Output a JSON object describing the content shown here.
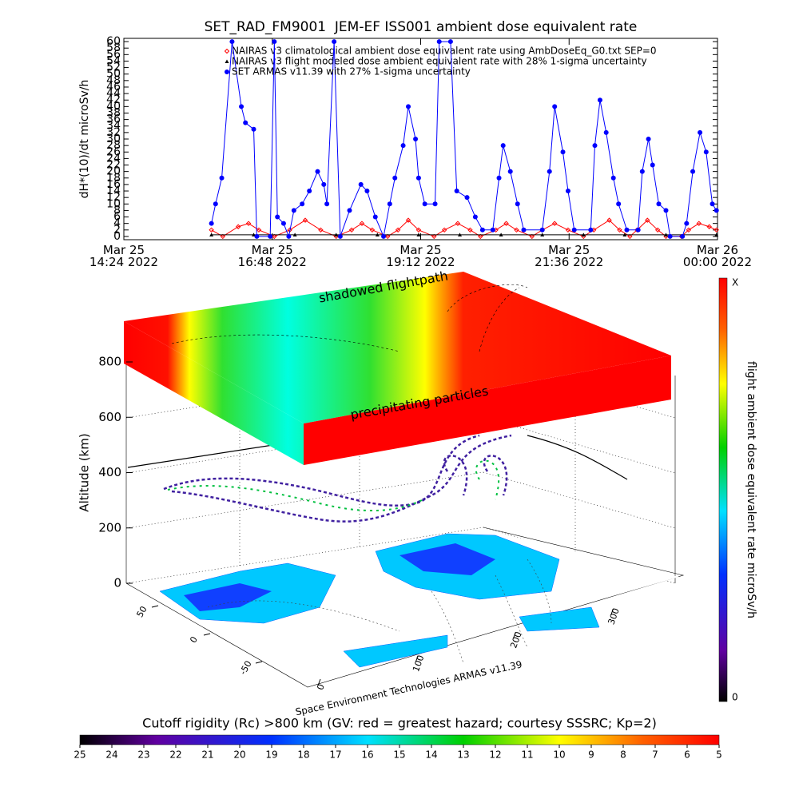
{
  "chart_data": [
    {
      "type": "line",
      "title": "SET_RAD_FM9001  JEM-EF ISS001 ambient dose equivalent rate",
      "ylabel": "dH*(10)/dt microSv/h",
      "xlim": [
        "2022-03-25T14:24",
        "2022-03-26T00:00"
      ],
      "xticks": [
        {
          "value": "2022-03-25T14:24",
          "label": "Mar 25\n14:24 2022"
        },
        {
          "value": "2022-03-25T16:48",
          "label": "Mar 25\n16:48 2022"
        },
        {
          "value": "2022-03-25T19:12",
          "label": "Mar 25\n19:12 2022"
        },
        {
          "value": "2022-03-25T21:36",
          "label": "Mar 25\n21:36 2022"
        },
        {
          "value": "2022-03-26T00:00",
          "label": "Mar 26\n00:00 2022"
        }
      ],
      "ylim": [
        -1,
        61
      ],
      "yticks": [
        0,
        2,
        4,
        6,
        8,
        10,
        12,
        14,
        16,
        18,
        20,
        22,
        24,
        26,
        28,
        30,
        32,
        34,
        36,
        38,
        40,
        42,
        44,
        46,
        48,
        50,
        52,
        54,
        56,
        58,
        60
      ],
      "series": [
        {
          "name": "NAIRAS v3 climatological ambient dose equivalent rate using AmbDoseEq_G0.txt SEP=0",
          "color": "#ff0000",
          "marker": "diamond",
          "x": [
            "2022-03-25T15:49",
            "2022-03-25T16:00",
            "2022-03-25T16:15",
            "2022-03-25T16:25",
            "2022-03-25T16:35",
            "2022-03-25T16:50",
            "2022-03-25T17:05",
            "2022-03-25T17:20",
            "2022-03-25T17:35",
            "2022-03-25T17:50",
            "2022-03-25T18:05",
            "2022-03-25T18:15",
            "2022-03-25T18:25",
            "2022-03-25T18:40",
            "2022-03-25T18:50",
            "2022-03-25T19:00",
            "2022-03-25T19:10",
            "2022-03-25T19:25",
            "2022-03-25T19:35",
            "2022-03-25T19:48",
            "2022-03-25T20:00",
            "2022-03-25T20:10",
            "2022-03-25T20:25",
            "2022-03-25T20:35",
            "2022-03-25T20:45",
            "2022-03-25T21:00",
            "2022-03-25T21:10",
            "2022-03-25T21:22",
            "2022-03-25T21:35",
            "2022-03-25T21:50",
            "2022-03-25T22:00",
            "2022-03-25T22:15",
            "2022-03-25T22:25",
            "2022-03-25T22:35",
            "2022-03-25T22:42",
            "2022-03-25T22:52",
            "2022-03-25T23:02",
            "2022-03-25T23:10",
            "2022-03-25T23:25",
            "2022-03-25T23:32",
            "2022-03-25T23:42",
            "2022-03-25T23:52",
            "2022-03-25T23:59"
          ],
          "values": [
            2,
            0,
            3,
            4,
            2,
            0,
            2,
            5,
            2,
            0,
            2,
            4,
            2,
            0,
            2,
            5,
            2,
            0,
            2,
            4,
            2,
            0,
            2,
            4,
            2,
            0,
            2,
            4,
            2,
            0,
            2,
            5,
            2,
            0,
            2,
            5,
            2,
            0,
            0,
            2,
            4,
            3,
            2
          ]
        },
        {
          "name": "NAIRAS v3 flight modeled dose ambient equivalent rate with 28% 1-sigma uncertainty",
          "color": "#000000",
          "marker": "triangle",
          "x": [
            "2022-03-25T15:49",
            "2022-03-25T16:30",
            "2022-03-25T17:10",
            "2022-03-25T17:50",
            "2022-03-25T18:30",
            "2022-03-25T19:10",
            "2022-03-25T19:50",
            "2022-03-25T20:30",
            "2022-03-25T21:10",
            "2022-03-25T21:50",
            "2022-03-25T22:30",
            "2022-03-25T23:10",
            "2022-03-25T23:59"
          ],
          "values": [
            0.5,
            0.5,
            0.5,
            0.5,
            0.5,
            0.5,
            0.5,
            0.5,
            0.5,
            0.5,
            0.5,
            0.5,
            0.5
          ]
        },
        {
          "name": "SET ARMAS v11.39 with 27% 1-sigma uncertainty",
          "color": "#0000ff",
          "marker": "circle",
          "x": [
            "2022-03-25T15:49",
            "2022-03-25T15:53",
            "2022-03-25T15:59",
            "2022-03-25T16:09",
            "2022-03-25T16:18",
            "2022-03-25T16:22",
            "2022-03-25T16:30",
            "2022-03-25T16:33",
            "2022-03-25T16:46",
            "2022-03-25T16:50",
            "2022-03-25T16:53",
            "2022-03-25T16:59",
            "2022-03-25T17:04",
            "2022-03-25T17:09",
            "2022-03-25T17:17",
            "2022-03-25T17:24",
            "2022-03-25T17:32",
            "2022-03-25T17:38",
            "2022-03-25T17:41",
            "2022-03-25T17:48",
            "2022-03-25T17:54",
            "2022-03-25T18:03",
            "2022-03-25T18:14",
            "2022-03-25T18:20",
            "2022-03-25T18:28",
            "2022-03-25T18:36",
            "2022-03-25T18:42",
            "2022-03-25T18:47",
            "2022-03-25T18:55",
            "2022-03-25T19:00",
            "2022-03-25T19:07",
            "2022-03-25T19:10",
            "2022-03-25T19:16",
            "2022-03-25T19:26",
            "2022-03-25T19:30",
            "2022-03-25T19:41",
            "2022-03-25T19:47",
            "2022-03-25T19:57",
            "2022-03-25T20:05",
            "2022-03-25T20:12",
            "2022-03-25T20:22",
            "2022-03-25T20:28",
            "2022-03-25T20:32",
            "2022-03-25T20:39",
            "2022-03-25T20:46",
            "2022-03-25T20:52",
            "2022-03-25T21:10",
            "2022-03-25T21:17",
            "2022-03-25T21:22",
            "2022-03-25T21:30",
            "2022-03-25T21:35",
            "2022-03-25T21:41",
            "2022-03-25T21:57",
            "2022-03-25T22:01",
            "2022-03-25T22:06",
            "2022-03-25T22:12",
            "2022-03-25T22:19",
            "2022-03-25T22:24",
            "2022-03-25T22:32",
            "2022-03-25T22:43",
            "2022-03-25T22:47",
            "2022-03-25T22:53",
            "2022-03-25T22:57",
            "2022-03-25T23:03",
            "2022-03-25T23:10",
            "2022-03-25T23:14",
            "2022-03-25T23:26",
            "2022-03-25T23:30",
            "2022-03-25T23:36",
            "2022-03-25T23:43",
            "2022-03-25T23:49",
            "2022-03-25T23:55",
            "2022-03-25T23:59"
          ],
          "values": [
            4,
            10,
            18,
            60,
            40,
            35,
            33,
            0,
            0,
            60,
            6,
            4,
            0,
            8,
            10,
            14,
            20,
            16,
            10,
            60,
            0,
            8,
            16,
            14,
            6,
            0,
            10,
            18,
            28,
            40,
            30,
            18,
            10,
            10,
            60,
            60,
            14,
            12,
            6,
            2,
            2,
            18,
            28,
            20,
            10,
            2,
            2,
            20,
            40,
            26,
            14,
            2,
            2,
            28,
            42,
            32,
            18,
            10,
            2,
            2,
            20,
            30,
            22,
            10,
            8,
            0,
            0,
            4,
            20,
            32,
            26,
            10,
            8
          ]
        }
      ],
      "legend": "upper left"
    },
    {
      "type": "surface3d",
      "zlabel": "Altitude (km)",
      "zlim": [
        0,
        800
      ],
      "zticks": [
        0,
        200,
        400,
        600,
        800
      ],
      "xlim": [
        0,
        360
      ],
      "xticks": [
        0,
        100,
        200,
        300
      ],
      "ylim": [
        -90,
        90
      ],
      "yticks": [
        -50,
        0,
        50
      ],
      "annotations": [
        "shadowed flightpath",
        "precipitating particles"
      ],
      "credit": "Space Environment Technologies ARMAS v11.39"
    },
    {
      "type": "colorbar",
      "orientation": "vertical",
      "title": "flight ambient dose equivalent rate microSv/h",
      "labels": [
        "X",
        "0"
      ]
    },
    {
      "type": "colorbar",
      "orientation": "horizontal",
      "title": "Cutoff rigidity (Rc) >800 km (GV: red = greatest hazard; courtesy SSSRC; Kp=2)",
      "clim": [
        25,
        5
      ],
      "ticks": [
        25,
        24,
        23,
        22,
        21,
        20,
        19,
        18,
        17,
        16,
        15,
        14,
        13,
        12,
        11,
        10,
        9,
        8,
        7,
        6,
        5
      ]
    }
  ]
}
